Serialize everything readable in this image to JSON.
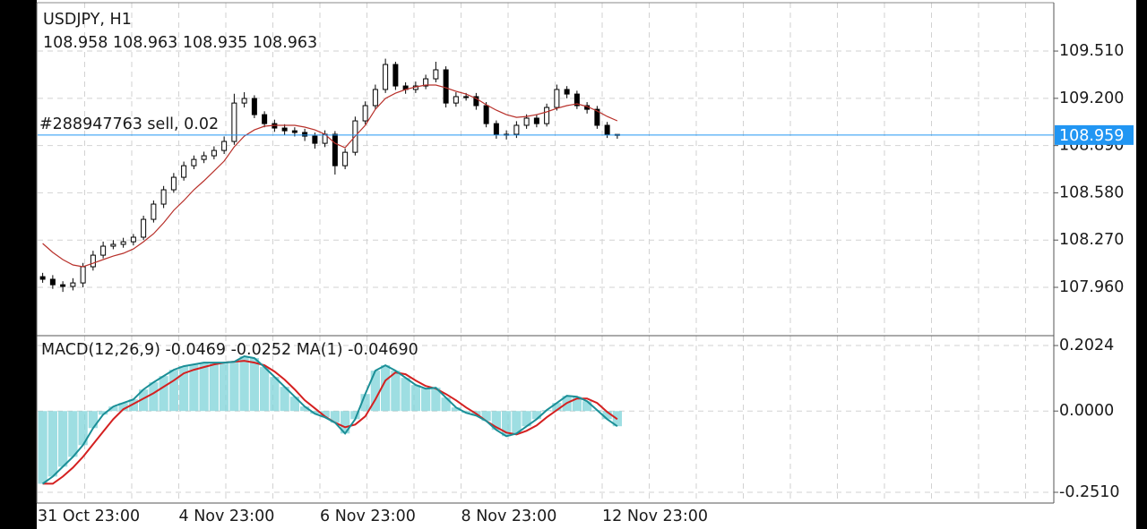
{
  "chart_data": [
    {
      "type": "candlestick",
      "title": "USDJPY, H1",
      "subtitle": "108.958 108.963 108.935 108.963",
      "annotation": "#288947763 sell, 0.02",
      "price_line": 108.959,
      "price_line_color": "#2196f3",
      "up_color": "#ffffff",
      "down_color": "#000000",
      "open": [
        108.03,
        108.013,
        107.977,
        107.966,
        107.989,
        108.095,
        108.171,
        108.23,
        108.242,
        108.259,
        108.289,
        108.406,
        108.506,
        108.6,
        108.682,
        108.758,
        108.799,
        108.823,
        108.858,
        108.917,
        109.169,
        109.199,
        109.093,
        109.034,
        109.005,
        108.987,
        108.976,
        108.952,
        108.905,
        108.964,
        108.758,
        108.846,
        109.052,
        109.152,
        109.258,
        109.422,
        109.281,
        109.258,
        109.281,
        109.328,
        109.387,
        109.169,
        109.211,
        109.211,
        109.152,
        109.034,
        108.964,
        108.964,
        109.023,
        109.07,
        109.034,
        109.14,
        109.258,
        109.228,
        109.152,
        109.128,
        109.023,
        108.958
      ],
      "high": [
        108.055,
        108.04,
        108.0,
        108.02,
        108.12,
        108.2,
        108.26,
        108.27,
        108.285,
        108.31,
        108.43,
        108.53,
        108.625,
        108.71,
        108.785,
        108.825,
        108.85,
        108.885,
        108.95,
        109.23,
        109.24,
        109.22,
        109.115,
        109.06,
        109.03,
        109.01,
        109.0,
        108.975,
        108.99,
        108.985,
        108.87,
        109.08,
        109.18,
        109.29,
        109.46,
        109.44,
        109.305,
        109.31,
        109.355,
        109.44,
        109.41,
        109.24,
        109.235,
        109.235,
        109.175,
        109.055,
        108.99,
        109.05,
        109.095,
        109.095,
        109.165,
        109.29,
        109.28,
        109.25,
        109.175,
        109.15,
        109.045,
        108.963
      ],
      "low": [
        107.99,
        107.95,
        107.93,
        107.94,
        107.96,
        108.07,
        108.15,
        108.21,
        108.22,
        108.235,
        108.27,
        108.385,
        108.48,
        108.58,
        108.66,
        108.735,
        108.775,
        108.8,
        108.835,
        108.895,
        109.14,
        109.07,
        109.01,
        108.98,
        108.96,
        108.95,
        108.92,
        108.87,
        108.88,
        108.7,
        108.735,
        108.825,
        109.03,
        109.13,
        109.235,
        109.255,
        109.23,
        109.235,
        109.26,
        109.305,
        109.14,
        109.145,
        109.185,
        109.125,
        109.01,
        108.935,
        108.93,
        108.94,
        109.0,
        109.01,
        109.015,
        109.12,
        109.2,
        109.13,
        109.1,
        109.0,
        108.94,
        108.935
      ],
      "close": [
        108.013,
        107.977,
        107.966,
        107.989,
        108.095,
        108.171,
        108.23,
        108.242,
        108.259,
        108.289,
        108.406,
        108.506,
        108.6,
        108.682,
        108.758,
        108.799,
        108.823,
        108.858,
        108.917,
        109.169,
        109.199,
        109.093,
        109.034,
        109.005,
        108.987,
        108.976,
        108.952,
        108.905,
        108.964,
        108.758,
        108.846,
        109.052,
        109.152,
        109.258,
        109.422,
        109.281,
        109.258,
        109.281,
        109.328,
        109.387,
        109.169,
        109.211,
        109.211,
        109.152,
        109.034,
        108.964,
        108.964,
        109.023,
        109.07,
        109.034,
        109.14,
        109.258,
        109.228,
        109.152,
        109.128,
        109.023,
        108.964,
        108.963
      ],
      "series": [
        {
          "type": "line",
          "color": "#b8302a",
          "values": [
            108.248,
            108.189,
            108.142,
            108.107,
            108.095,
            108.118,
            108.142,
            108.165,
            108.183,
            108.212,
            108.259,
            108.312,
            108.383,
            108.465,
            108.529,
            108.6,
            108.659,
            108.723,
            108.788,
            108.882,
            108.952,
            108.993,
            109.017,
            109.023,
            109.023,
            109.023,
            109.011,
            108.993,
            108.964,
            108.905,
            108.876,
            108.952,
            109.023,
            109.128,
            109.199,
            109.234,
            109.258,
            109.275,
            109.287,
            109.287,
            109.269,
            109.246,
            109.228,
            109.199,
            109.158,
            109.122,
            109.093,
            109.075,
            109.081,
            109.093,
            109.111,
            109.134,
            109.152,
            109.164,
            109.146,
            109.117,
            109.081,
            109.052
          ]
        }
      ],
      "ylim": [
        107.643,
        109.845
      ],
      "yticks": [
        {
          "value": 109.51,
          "label": "109.510"
        },
        {
          "value": 109.2,
          "label": "109.200"
        },
        {
          "value": 108.89,
          "label": "108.890"
        },
        {
          "value": 108.58,
          "label": "108.580"
        },
        {
          "value": 108.27,
          "label": "108.270"
        },
        {
          "value": 107.96,
          "label": "107.960"
        }
      ],
      "grid": true
    },
    {
      "type": "macd",
      "title": "MACD(12,26,9) -0.0469 -0.0252 MA(1) -0.04690",
      "categories": [
        "31 Oct 23:00",
        null,
        null,
        null,
        null,
        null,
        null,
        null,
        null,
        null,
        null,
        null,
        null,
        null,
        "4 Nov 23:00",
        null,
        null,
        null,
        null,
        null,
        null,
        null,
        null,
        null,
        null,
        null,
        null,
        null,
        "6 Nov 23:00",
        null,
        null,
        null,
        null,
        null,
        null,
        null,
        null,
        null,
        null,
        null,
        null,
        null,
        "8 Nov 23:00",
        null,
        null,
        null,
        null,
        null,
        null,
        null,
        null,
        null,
        null,
        null,
        null,
        null,
        "12 Nov 23:00",
        null
      ],
      "series": [
        {
          "type": "bar",
          "color": "#7dd3d8",
          "values": [
            -0.2246,
            -0.2024,
            -0.1719,
            -0.1414,
            -0.1054,
            -0.0527,
            -0.0111,
            0.0139,
            0.025,
            0.036,
            0.0666,
            0.0887,
            0.1081,
            0.1276,
            0.1387,
            0.1442,
            0.1497,
            0.1497,
            0.1497,
            0.1525,
            0.1692,
            0.1636,
            0.1359,
            0.1054,
            0.0749,
            0.0444,
            0.0139,
            -0.0083,
            -0.0194,
            -0.036,
            -0.0693,
            -0.025,
            0.0527,
            0.1248,
            0.1414,
            0.1248,
            0.1026,
            0.0804,
            0.0693,
            0.0721,
            0.0416,
            0.0111,
            -0.0055,
            -0.0139,
            -0.0305,
            -0.0582,
            -0.0776,
            -0.0693,
            -0.0471,
            -0.025,
            0.0028,
            0.025,
            0.0471,
            0.0444,
            0.0305,
            0.0028,
            -0.025,
            -0.0469
          ]
        },
        {
          "type": "line",
          "color": "#d42020",
          "values": [
            -0.2246,
            -0.2246,
            -0.2024,
            -0.1747,
            -0.1414,
            -0.1026,
            -0.0638,
            -0.025,
            0.0055,
            0.0222,
            0.0388,
            0.0555,
            0.0749,
            0.0943,
            0.1165,
            0.1276,
            0.1359,
            0.1442,
            0.1497,
            0.1525,
            0.1553,
            0.1497,
            0.1414,
            0.122,
            0.0971,
            0.0666,
            0.0333,
            0.0083,
            -0.0166,
            -0.036,
            -0.0499,
            -0.0416,
            -0.0166,
            0.036,
            0.0943,
            0.1192,
            0.1137,
            0.0943,
            0.0776,
            0.0693,
            0.0527,
            0.0333,
            0.0111,
            -0.0083,
            -0.0305,
            -0.0499,
            -0.0666,
            -0.0721,
            -0.061,
            -0.0444,
            -0.0194,
            0.0028,
            0.025,
            0.0388,
            0.0388,
            0.025,
            -0.0028,
            -0.0252
          ]
        },
        {
          "type": "line",
          "color": "#1b8f97",
          "values": [
            -0.2246,
            -0.2024,
            -0.1719,
            -0.1414,
            -0.1054,
            -0.0527,
            -0.0111,
            0.0139,
            0.025,
            0.036,
            0.0666,
            0.0887,
            0.1081,
            0.1276,
            0.1387,
            0.1442,
            0.1497,
            0.1497,
            0.1497,
            0.1525,
            0.1692,
            0.1636,
            0.1359,
            0.1054,
            0.0749,
            0.0444,
            0.0139,
            -0.0083,
            -0.0194,
            -0.036,
            -0.0693,
            -0.025,
            0.0527,
            0.1248,
            0.1414,
            0.1248,
            0.1026,
            0.0804,
            0.0693,
            0.0721,
            0.0416,
            0.0111,
            -0.0055,
            -0.0139,
            -0.0305,
            -0.0582,
            -0.0776,
            -0.0693,
            -0.0471,
            -0.025,
            0.0028,
            0.025,
            0.0471,
            0.0444,
            0.0305,
            0.0028,
            -0.025,
            -0.0469
          ]
        }
      ],
      "ylim": [
        -0.2842,
        0.2329
      ],
      "yticks": [
        0.2024,
        {
          "value": 0,
          "label": "0.0000"
        },
        {
          "value": -0.251,
          "label": "-0.2510"
        }
      ],
      "grid": true
    }
  ]
}
